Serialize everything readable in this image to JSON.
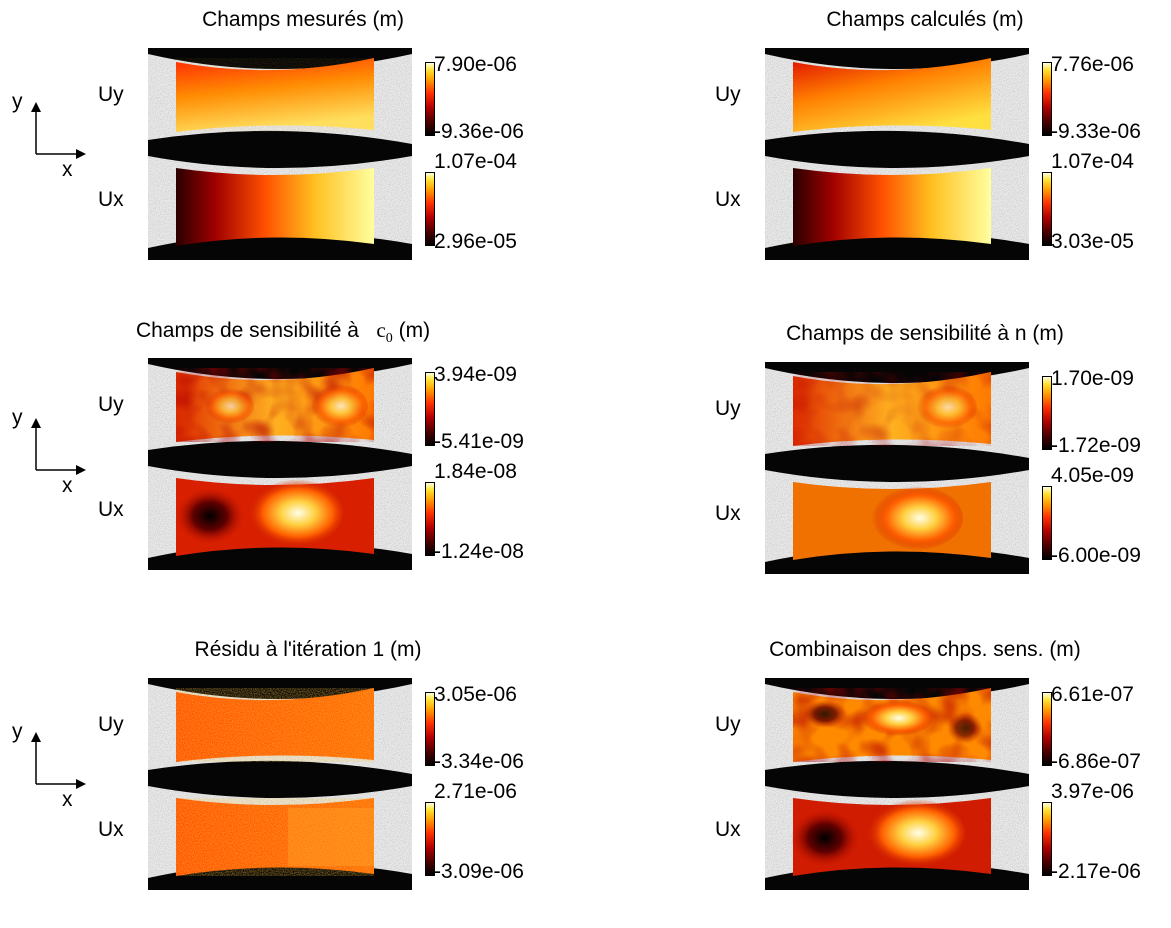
{
  "axes_labels": {
    "y": "y",
    "x": "x"
  },
  "panels": [
    {
      "title": "Champs mesurés (m)",
      "uy_label": "Uy",
      "ux_label": "Ux",
      "uy_max": "7.90e-06",
      "uy_min": "-9.36e-06",
      "ux_max": "1.07e-04",
      "ux_min": "2.96e-05"
    },
    {
      "title": "Champs calculés (m)",
      "uy_label": "Uy",
      "ux_label": "Ux",
      "uy_max": "7.76e-06",
      "uy_min": "-9.33e-06",
      "ux_max": "1.07e-04",
      "ux_min": "3.03e-05"
    },
    {
      "title_prefix": "Champs de sensibilité à",
      "title_symbol": "c",
      "title_sub": "0",
      "title_suffix": "(m)",
      "uy_label": "Uy",
      "ux_label": "Ux",
      "uy_max": "3.94e-09",
      "uy_min": "-5.41e-09",
      "ux_max": "1.84e-08",
      "ux_min": "-1.24e-08"
    },
    {
      "title": "Champs de sensibilité à n (m)",
      "uy_label": "Uy",
      "ux_label": "Ux",
      "uy_max": "1.70e-09",
      "uy_min": "-1.72e-09",
      "ux_max": "4.05e-09",
      "ux_min": "-6.00e-09"
    },
    {
      "title": "Résidu à l'itération 1 (m)",
      "uy_label": "Uy",
      "ux_label": "Ux",
      "uy_max": "3.05e-06",
      "uy_min": "-3.34e-06",
      "ux_max": "2.71e-06",
      "ux_min": "-3.09e-06"
    },
    {
      "title": "Combinaison des chps. sens. (m)",
      "uy_label": "Uy",
      "ux_label": "Ux",
      "uy_max": "6.61e-07",
      "uy_min": "-6.86e-07",
      "ux_max": "3.97e-06",
      "ux_min": "-2.17e-06"
    }
  ],
  "colormap": "hot"
}
